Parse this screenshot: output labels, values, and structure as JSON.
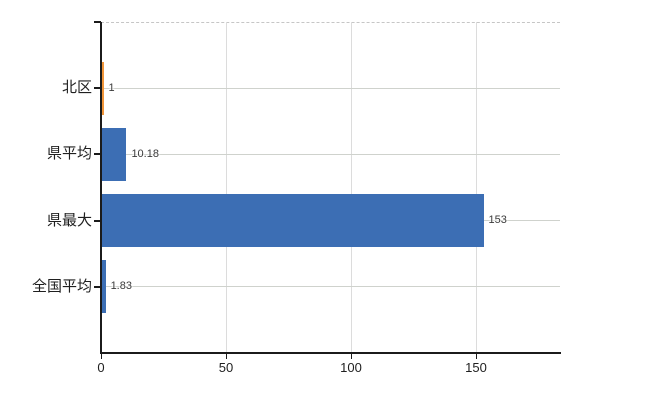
{
  "chart_data": {
    "type": "bar",
    "orientation": "horizontal",
    "title": "",
    "xlabel": "",
    "ylabel": "",
    "categories": [
      "北区",
      "県平均",
      "県最大",
      "全国平均"
    ],
    "values": [
      1,
      10.18,
      153,
      1.83
    ],
    "value_labels": [
      "1",
      "10.18",
      "153",
      "1.83"
    ],
    "bar_colors": [
      "#f0953a",
      "#3c6eb4",
      "#3c6eb4",
      "#3c6eb4"
    ],
    "x_ticks": [
      0,
      50,
      100,
      150
    ],
    "x_tick_labels": [
      "0",
      "50",
      "100",
      "150"
    ],
    "xlim": [
      0,
      183.6
    ],
    "grid": true,
    "legend": false
  },
  "colors": {
    "bar_blue": "#3c6eb4",
    "bar_orange": "#f0953a",
    "axis": "#1b1b1b",
    "vertical_grid": "#dcdcdc",
    "row_grid": "#cfd2cd",
    "dashed_border": "#c6c6c6",
    "background": "#ffffff",
    "text": "#1f1f1f"
  }
}
